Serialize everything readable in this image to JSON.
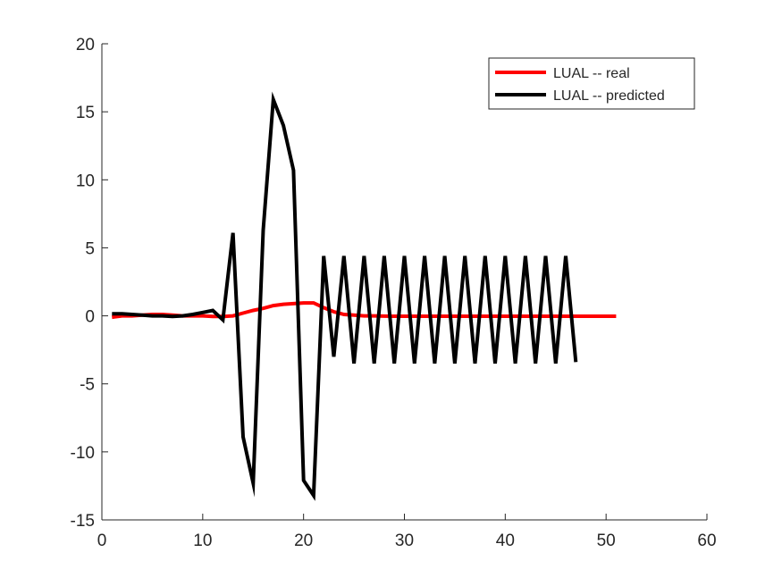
{
  "chart_data": {
    "type": "line",
    "title": "",
    "xlabel": "",
    "ylabel": "",
    "xlim": [
      0,
      60
    ],
    "ylim": [
      -15,
      20
    ],
    "xticks": [
      0,
      10,
      20,
      30,
      40,
      50,
      60
    ],
    "yticks": [
      -15,
      -10,
      -5,
      0,
      5,
      10,
      15,
      20
    ],
    "xtick_labels": [
      "0",
      "10",
      "20",
      "30",
      "40",
      "50",
      "60"
    ],
    "ytick_labels": [
      "-15",
      "-10",
      "-5",
      "0",
      "5",
      "10",
      "15",
      "20"
    ],
    "grid": false,
    "legend_position": "top-right",
    "series": [
      {
        "name": "LUAL -- real",
        "color": "#ff0000",
        "x": [
          1,
          2,
          3,
          4,
          5,
          6,
          7,
          8,
          9,
          10,
          11,
          12,
          13,
          14,
          15,
          16,
          17,
          18,
          19,
          20,
          21,
          22,
          23,
          24,
          25,
          26,
          27,
          28,
          29,
          30,
          31,
          32,
          33,
          34,
          35,
          36,
          37,
          38,
          39,
          40,
          41,
          42,
          43,
          44,
          45,
          46,
          47,
          48,
          49,
          50,
          51
        ],
        "y": [
          -0.1,
          0,
          0,
          0.05,
          0.1,
          0.1,
          0.05,
          0,
          0,
          0,
          -0.05,
          -0.05,
          0,
          0.2,
          0.4,
          0.55,
          0.75,
          0.85,
          0.9,
          0.95,
          0.95,
          0.6,
          0.3,
          0.1,
          0.05,
          0,
          0,
          -0.02,
          -0.03,
          -0.03,
          -0.03,
          -0.03,
          -0.03,
          -0.03,
          -0.03,
          -0.03,
          -0.03,
          -0.03,
          -0.03,
          -0.03,
          -0.03,
          -0.03,
          -0.03,
          -0.03,
          -0.03,
          -0.03,
          -0.03,
          -0.03,
          -0.03,
          -0.03,
          -0.03
        ]
      },
      {
        "name": "LUAL -- predicted",
        "color": "#000000",
        "x": [
          1,
          2,
          3,
          4,
          5,
          6,
          7,
          8,
          9,
          10,
          11,
          12,
          13,
          14,
          15,
          16,
          17,
          18,
          19,
          20,
          21,
          22,
          23,
          24,
          25,
          26,
          27,
          28,
          29,
          30,
          31,
          32,
          33,
          34,
          35,
          36,
          37,
          38,
          39,
          40,
          41,
          42,
          43,
          44,
          45,
          46,
          47
        ],
        "y": [
          0.15,
          0.15,
          0.1,
          0.05,
          0,
          0,
          -0.05,
          0,
          0.1,
          0.25,
          0.4,
          -0.3,
          6.1,
          -8.9,
          -12.3,
          6.3,
          15.9,
          14.0,
          10.7,
          -12.1,
          -13.2,
          4.4,
          -3.0,
          4.4,
          -3.5,
          4.4,
          -3.5,
          4.4,
          -3.5,
          4.4,
          -3.5,
          4.4,
          -3.5,
          4.4,
          -3.5,
          4.4,
          -3.5,
          4.4,
          -3.5,
          4.4,
          -3.5,
          4.4,
          -3.5,
          4.4,
          -3.5,
          4.4,
          -3.4
        ]
      }
    ]
  }
}
